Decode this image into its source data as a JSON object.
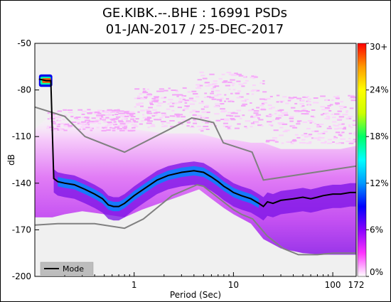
{
  "chart_data": {
    "type": "heatmap",
    "title": "GE.KIBK.--.BHE : 16991 PSDs",
    "subtitle": "01-JAN-2017 / 25-DEC-2017",
    "xlabel": "Period (Sec)",
    "ylabel": "dB",
    "x_scale": "log",
    "xlim": [
      0.1,
      172
    ],
    "ylim": [
      -200,
      -50
    ],
    "x_ticks": [
      {
        "value": 1,
        "label": "1"
      },
      {
        "value": 10,
        "label": "10"
      },
      {
        "value": 100,
        "label": "100"
      },
      {
        "value": 172,
        "label": "172"
      }
    ],
    "y_ticks": [
      {
        "value": -50,
        "label": "-50"
      },
      {
        "value": -80,
        "label": "-80"
      },
      {
        "value": -110,
        "label": "-110"
      },
      {
        "value": -140,
        "label": "-140"
      },
      {
        "value": -170,
        "label": "-170"
      },
      {
        "value": -200,
        "label": "-200"
      }
    ],
    "colorbar": {
      "ticks": [
        "0%",
        "6%",
        "12%",
        "18%",
        "24%",
        "30+"
      ],
      "colors": [
        "#ffffff",
        "#ff33ff",
        "#8800ff",
        "#0000ff",
        "#0099ff",
        "#00ffff",
        "#00ff66",
        "#ccff00",
        "#ffff00",
        "#ff9900",
        "#ff0000"
      ]
    },
    "legend": {
      "label": "Mode",
      "position": "bottom-left"
    },
    "mode_line": [
      [
        0.11,
        -73
      ],
      [
        0.13,
        -74
      ],
      [
        0.145,
        -74
      ],
      [
        0.155,
        -137
      ],
      [
        0.17,
        -139
      ],
      [
        0.2,
        -140
      ],
      [
        0.25,
        -141
      ],
      [
        0.32,
        -144
      ],
      [
        0.4,
        -147
      ],
      [
        0.48,
        -150
      ],
      [
        0.55,
        -154
      ],
      [
        0.62,
        -155
      ],
      [
        0.7,
        -155
      ],
      [
        0.8,
        -153
      ],
      [
        1.0,
        -148
      ],
      [
        1.3,
        -143
      ],
      [
        1.7,
        -138
      ],
      [
        2.2,
        -135
      ],
      [
        3.0,
        -133
      ],
      [
        4.0,
        -132
      ],
      [
        5.0,
        -133
      ],
      [
        6.0,
        -136
      ],
      [
        7.0,
        -139
      ],
      [
        8.0,
        -142
      ],
      [
        9.0,
        -144
      ],
      [
        10.0,
        -146
      ],
      [
        12.0,
        -148
      ],
      [
        15.0,
        -150
      ],
      [
        18.0,
        -153
      ],
      [
        20.0,
        -155
      ],
      [
        22.0,
        -152
      ],
      [
        25.0,
        -153
      ],
      [
        30.0,
        -151
      ],
      [
        40.0,
        -150
      ],
      [
        50.0,
        -149
      ],
      [
        60.0,
        -150
      ],
      [
        70.0,
        -149
      ],
      [
        80.0,
        -148
      ],
      [
        100.0,
        -147
      ],
      [
        120.0,
        -147
      ],
      [
        150.0,
        -146
      ],
      [
        172.0,
        -146
      ]
    ],
    "high_noise_model": [
      [
        0.1,
        -91
      ],
      [
        0.2,
        -97
      ],
      [
        0.32,
        -110
      ],
      [
        0.8,
        -120
      ],
      [
        3.8,
        -98
      ],
      [
        4.6,
        -99
      ],
      [
        6.3,
        -101
      ],
      [
        7.9,
        -114
      ],
      [
        15.4,
        -120
      ],
      [
        20,
        -138
      ],
      [
        172,
        -129
      ]
    ],
    "low_noise_model": [
      [
        0.1,
        -167
      ],
      [
        0.17,
        -166
      ],
      [
        0.4,
        -166
      ],
      [
        0.8,
        -169
      ],
      [
        1.24,
        -163
      ],
      [
        2.4,
        -148
      ],
      [
        4.3,
        -141
      ],
      [
        5.0,
        -142
      ],
      [
        6.0,
        -146
      ],
      [
        10,
        -157
      ],
      [
        12,
        -160
      ],
      [
        15.6,
        -163
      ],
      [
        21.9,
        -174
      ],
      [
        31.6,
        -182
      ],
      [
        45,
        -186
      ],
      [
        70,
        -186
      ],
      [
        101,
        -185
      ],
      [
        154,
        -185
      ],
      [
        172,
        -185
      ]
    ],
    "density_band": [
      [
        0.1,
        -105,
        -162
      ],
      [
        0.15,
        -95,
        -162
      ],
      [
        0.2,
        -100,
        -160
      ],
      [
        0.3,
        -100,
        -158
      ],
      [
        0.5,
        -102,
        -160
      ],
      [
        0.8,
        -104,
        -162
      ],
      [
        1.2,
        -106,
        -157
      ],
      [
        2.0,
        -108,
        -152
      ],
      [
        3.0,
        -108,
        -148
      ],
      [
        4.5,
        -108,
        -144
      ],
      [
        6.0,
        -110,
        -150
      ],
      [
        8.0,
        -112,
        -156
      ],
      [
        10,
        -112,
        -160
      ],
      [
        15,
        -114,
        -166
      ],
      [
        20,
        -114,
        -176
      ],
      [
        30,
        -118,
        -182
      ],
      [
        50,
        -118,
        -185
      ],
      [
        80,
        -118,
        -186
      ],
      [
        120,
        -118,
        -186
      ],
      [
        172,
        -116,
        -186
      ]
    ],
    "scatter_bands": [
      {
        "from_x": 0.13,
        "to_x": 1.0,
        "upper": -92,
        "lower": -106
      },
      {
        "from_x": 1.0,
        "to_x": 4.0,
        "upper": -78,
        "lower": -104
      },
      {
        "from_x": 4.0,
        "to_x": 20,
        "upper": -68,
        "lower": -106
      },
      {
        "from_x": 20,
        "to_x": 172,
        "upper": -83,
        "lower": -114
      }
    ]
  }
}
